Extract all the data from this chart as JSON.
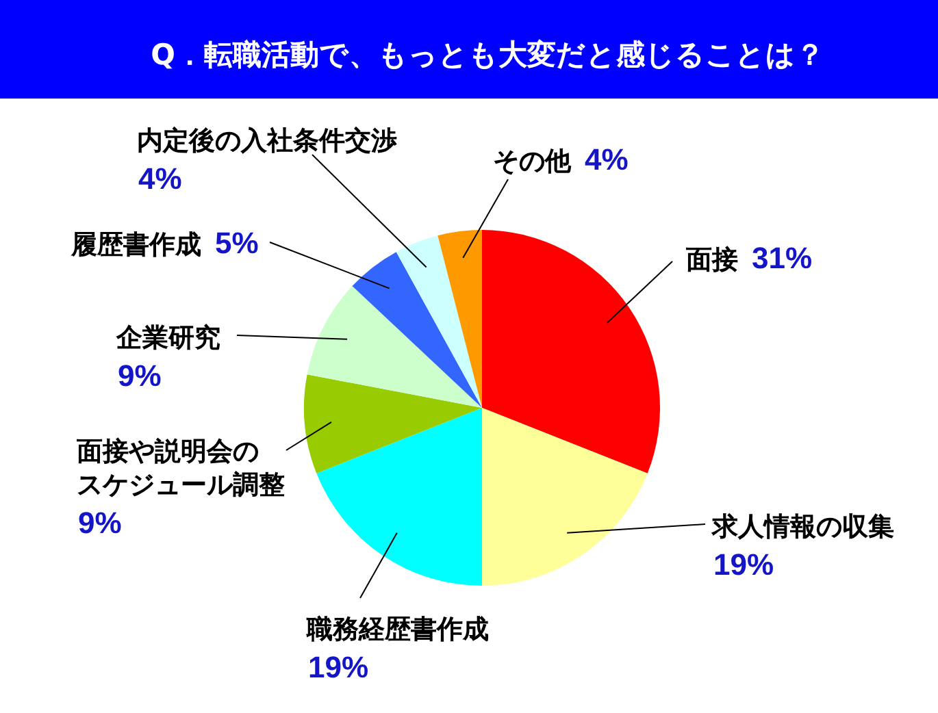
{
  "chart_data": {
    "type": "pie",
    "title": "Q．転職活動で、もっとも大変だと感じることは？",
    "categories": [
      "面接",
      "求人情報の収集",
      "職務経歴書作成",
      "面接や説明会のスケジュール調整",
      "企業研究",
      "履歴書作成",
      "内定後の入社条件交渉",
      "その他"
    ],
    "values": [
      31,
      19,
      19,
      9,
      9,
      5,
      4,
      4
    ],
    "colors": [
      "#ff0000",
      "#ffff99",
      "#00ffff",
      "#99cc00",
      "#ccffcc",
      "#3366ff",
      "#ccffff",
      "#ff9900"
    ],
    "value_labels": [
      "31%",
      "19%",
      "19%",
      "9%",
      "9%",
      "5%",
      "4%",
      "4%"
    ]
  }
}
